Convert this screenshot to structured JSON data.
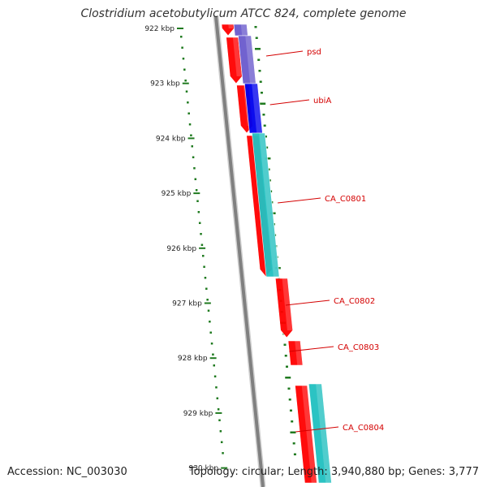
{
  "title": "Clostridium acetobutylicum ATCC 824, complete genome",
  "accession": "Accession: NC_003030",
  "summary": "Topology: circular; Length: 3,940,880 bp; Genes: 3,777",
  "colors": {
    "backbone": "#808080",
    "tick": "#1f7a1f",
    "cds": "#ff0000",
    "rna_violet": "#6a5acd",
    "rna_blue": "#0000ee",
    "rna_cyan": "#20c0c0",
    "label": "#d40000"
  },
  "scale_labels": [
    "922 kbp",
    "923 kbp",
    "924 kbp",
    "925 kbp",
    "926 kbp",
    "927 kbp",
    "928 kbp",
    "929 kbp",
    "930 kbp"
  ],
  "genes": [
    {
      "name": "psd",
      "start_kbp": 922.1,
      "end_kbp": 923.0
    },
    {
      "name": "ubiA",
      "start_kbp": 923.0,
      "end_kbp": 923.9
    },
    {
      "name": "CA_C0801",
      "start_kbp": 924.0,
      "end_kbp": 926.6
    },
    {
      "name": "CA_C0802",
      "start_kbp": 926.6,
      "end_kbp": 927.7
    },
    {
      "name": "CA_C0803",
      "start_kbp": 927.7,
      "end_kbp": 928.2
    },
    {
      "name": "CA_C0804",
      "start_kbp": 928.6,
      "end_kbp": 930.0
    }
  ]
}
